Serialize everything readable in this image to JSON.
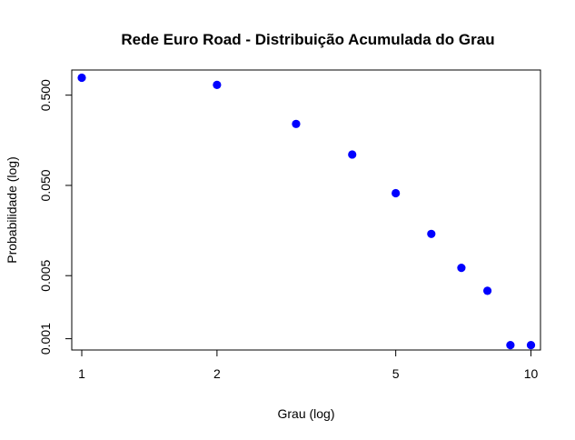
{
  "chart_data": {
    "type": "scatter",
    "title": "Rede Euro Road - Distribuição Acumulada do Grau",
    "xlabel": "Grau (log)",
    "ylabel": "Probabilidade (log)",
    "x_scale": "log",
    "y_scale": "log",
    "xlim": [
      0.95,
      10.5
    ],
    "ylim": [
      0.00075,
      0.95
    ],
    "x_ticks": [
      {
        "value": 1,
        "label": "1"
      },
      {
        "value": 2,
        "label": "2"
      },
      {
        "value": 5,
        "label": "5"
      },
      {
        "value": 10,
        "label": "10"
      }
    ],
    "y_ticks": [
      {
        "value": 0.001,
        "label": "0.001"
      },
      {
        "value": 0.005,
        "label": "0.005"
      },
      {
        "value": 0.05,
        "label": "0.050"
      },
      {
        "value": 0.5,
        "label": "0.500"
      }
    ],
    "grid": false,
    "legend": "none",
    "marker_color": "#0000ff",
    "series": [
      {
        "x": [
          1,
          2,
          3,
          4,
          5,
          6,
          7,
          8,
          9,
          10
        ],
        "y": [
          0.78,
          0.65,
          0.24,
          0.11,
          0.041,
          0.0145,
          0.0061,
          0.0034,
          0.00085,
          0.00085
        ]
      }
    ]
  }
}
